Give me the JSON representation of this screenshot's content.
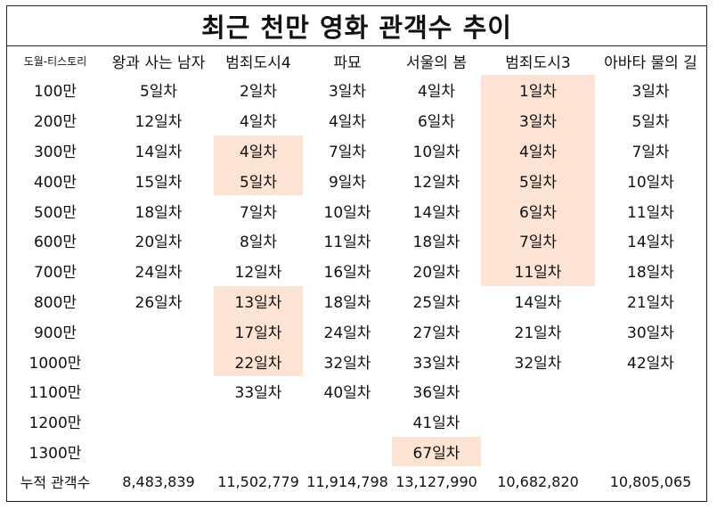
{
  "title": "최근 천만 영화 관객수 추이",
  "columns": [
    "도월-티스토리",
    "왕과 사는 남자",
    "범죄도시4",
    "파묘",
    "서울의 봄",
    "범죄도시3",
    "아바타 물의 길"
  ],
  "highlight_color": "#fde3d3",
  "rows": [
    {
      "label": "100만",
      "cells": [
        {
          "v": "5일차"
        },
        {
          "v": "2일차"
        },
        {
          "v": "3일차"
        },
        {
          "v": "4일차"
        },
        {
          "v": "1일차",
          "hl": true
        },
        {
          "v": "3일차"
        }
      ]
    },
    {
      "label": "200만",
      "cells": [
        {
          "v": "12일차"
        },
        {
          "v": "4일차"
        },
        {
          "v": "4일차"
        },
        {
          "v": "6일차"
        },
        {
          "v": "3일차",
          "hl": true
        },
        {
          "v": "5일차"
        }
      ]
    },
    {
      "label": "300만",
      "cells": [
        {
          "v": "14일차"
        },
        {
          "v": "4일차",
          "hl": true
        },
        {
          "v": "7일차"
        },
        {
          "v": "10일차"
        },
        {
          "v": "4일차",
          "hl": true
        },
        {
          "v": "7일차"
        }
      ]
    },
    {
      "label": "400만",
      "cells": [
        {
          "v": "15일차"
        },
        {
          "v": "5일차",
          "hl": true
        },
        {
          "v": "9일차"
        },
        {
          "v": "12일차"
        },
        {
          "v": "5일차",
          "hl": true
        },
        {
          "v": "10일차"
        }
      ]
    },
    {
      "label": "500만",
      "cells": [
        {
          "v": "18일차"
        },
        {
          "v": "7일차"
        },
        {
          "v": "10일차"
        },
        {
          "v": "14일차"
        },
        {
          "v": "6일차",
          "hl": true
        },
        {
          "v": "11일차"
        }
      ]
    },
    {
      "label": "600만",
      "cells": [
        {
          "v": "20일차"
        },
        {
          "v": "8일차"
        },
        {
          "v": "11일차"
        },
        {
          "v": "18일차"
        },
        {
          "v": "7일차",
          "hl": true
        },
        {
          "v": "14일차"
        }
      ]
    },
    {
      "label": "700만",
      "cells": [
        {
          "v": "24일차"
        },
        {
          "v": "12일차"
        },
        {
          "v": "16일차"
        },
        {
          "v": "20일차"
        },
        {
          "v": "11일차",
          "hl": true
        },
        {
          "v": "18일차"
        }
      ]
    },
    {
      "label": "800만",
      "cells": [
        {
          "v": "26일차"
        },
        {
          "v": "13일차",
          "hl": true
        },
        {
          "v": "18일차"
        },
        {
          "v": "25일차"
        },
        {
          "v": "14일차"
        },
        {
          "v": "21일차"
        }
      ]
    },
    {
      "label": "900만",
      "cells": [
        {
          "v": ""
        },
        {
          "v": "17일차",
          "hl": true
        },
        {
          "v": "24일차"
        },
        {
          "v": "27일차"
        },
        {
          "v": "21일차"
        },
        {
          "v": "30일차"
        }
      ]
    },
    {
      "label": "1000만",
      "cells": [
        {
          "v": ""
        },
        {
          "v": "22일차",
          "hl": true
        },
        {
          "v": "32일차"
        },
        {
          "v": "33일차"
        },
        {
          "v": "32일차"
        },
        {
          "v": "42일차"
        }
      ]
    },
    {
      "label": "1100만",
      "cells": [
        {
          "v": ""
        },
        {
          "v": "33일차"
        },
        {
          "v": "40일차"
        },
        {
          "v": "36일차"
        },
        {
          "v": ""
        },
        {
          "v": ""
        }
      ]
    },
    {
      "label": "1200만",
      "cells": [
        {
          "v": ""
        },
        {
          "v": ""
        },
        {
          "v": ""
        },
        {
          "v": "41일차"
        },
        {
          "v": ""
        },
        {
          "v": ""
        }
      ]
    },
    {
      "label": "1300만",
      "cells": [
        {
          "v": ""
        },
        {
          "v": ""
        },
        {
          "v": ""
        },
        {
          "v": "67일차",
          "hl": true
        },
        {
          "v": ""
        },
        {
          "v": ""
        }
      ]
    }
  ],
  "totals": {
    "label": "누적 관객수",
    "values": [
      "8,483,839",
      "11,502,779",
      "11,914,798",
      "13,127,990",
      "10,682,820",
      "10,805,065"
    ]
  }
}
